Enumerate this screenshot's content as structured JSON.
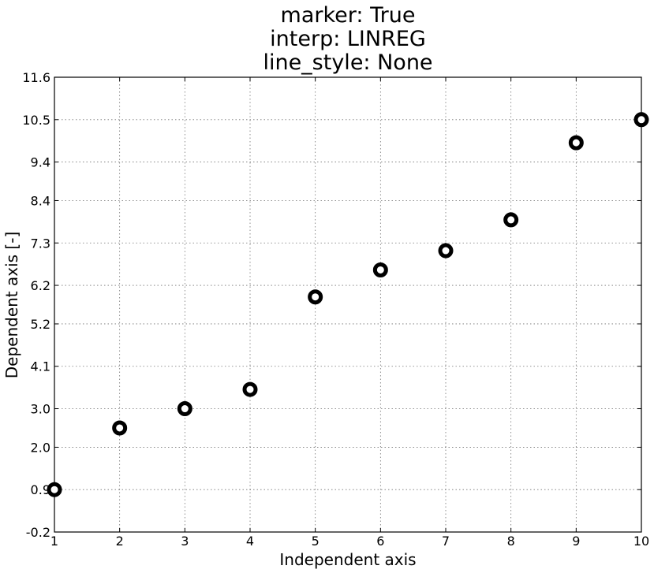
{
  "chart_data": {
    "type": "scatter",
    "title": [
      "marker: True",
      "interp: LINREG",
      "line_style: None"
    ],
    "xlabel": "Independent axis",
    "ylabel": "Dependent axis [-]",
    "xlim": [
      1,
      10
    ],
    "ylim": [
      -0.2,
      11.6
    ],
    "xticks": [
      1,
      2,
      3,
      4,
      5,
      6,
      7,
      8,
      9,
      10
    ],
    "xtick_labels": [
      "1",
      "2",
      "3",
      "4",
      "5",
      "6",
      "7",
      "8",
      "9",
      "10"
    ],
    "yticks": [
      -0.2,
      0.9,
      2.0,
      3.0,
      4.1,
      5.2,
      6.2,
      7.3,
      8.4,
      9.4,
      10.5,
      11.6
    ],
    "ytick_labels": [
      "-0.2",
      "0.9",
      "2.0",
      "3.0",
      "4.1",
      "5.2",
      "6.2",
      "7.3",
      "8.4",
      "9.4",
      "10.5",
      "11.6"
    ],
    "grid": true,
    "marker": "thick-ring",
    "marker_color": "#000000",
    "series": [
      {
        "x": [
          1,
          2,
          3,
          4,
          5,
          6,
          7,
          8,
          9,
          10
        ],
        "values": [
          0.9,
          2.5,
          3.0,
          3.5,
          5.9,
          6.6,
          7.1,
          7.9,
          9.9,
          10.5
        ]
      }
    ]
  }
}
